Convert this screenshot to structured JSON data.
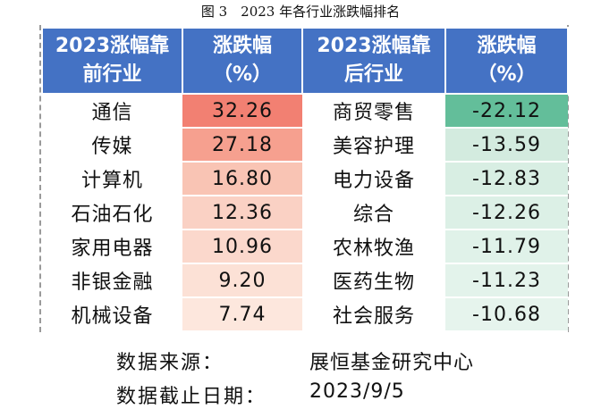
{
  "caption": "图 3　2023 年各行业涨跌幅排名",
  "headers": {
    "top_industry": "2023涨幅靠前行业",
    "top_change": "涨跌幅（%）",
    "bottom_industry": "2023涨幅靠后行业",
    "bottom_change": "涨跌幅（%）"
  },
  "rows": [
    {
      "top": "通信",
      "top_change": "32.26",
      "bottom": "商贸零售",
      "bottom_change": "-22.12"
    },
    {
      "top": "传媒",
      "top_change": "27.18",
      "bottom": "美容护理",
      "bottom_change": "-13.59"
    },
    {
      "top": "计算机",
      "top_change": "16.80",
      "bottom": "电力设备",
      "bottom_change": "-12.83"
    },
    {
      "top": "石油石化",
      "top_change": "12.36",
      "bottom": "综合",
      "bottom_change": "-12.26"
    },
    {
      "top": "家用电器",
      "top_change": "10.96",
      "bottom": "农林牧渔",
      "bottom_change": "-11.79"
    },
    {
      "top": "非银金融",
      "top_change": "9.20",
      "bottom": "医药生物",
      "bottom_change": "-11.23"
    },
    {
      "top": "机械设备",
      "top_change": "7.74",
      "bottom": "社会服务",
      "bottom_change": "-10.68"
    }
  ],
  "colors": {
    "header": "#4472c4",
    "top_change_fill": [
      "#f28072",
      "#f6a08f",
      "#f9c4b4",
      "#fad1c4",
      "#fbd8cc",
      "#fce1d6",
      "#fde7dd"
    ],
    "bottom_change_fill": [
      "#63be9a",
      "#d3ebdf",
      "#d8eee3",
      "#dcf0e6",
      "#e0f2e9",
      "#e3f3eb",
      "#e6f4ed"
    ]
  },
  "source": {
    "label": "数据来源：",
    "value": "展恒基金研究中心"
  },
  "cutoff": {
    "label": "数据截止日期：",
    "value": "2023/9/5"
  }
}
